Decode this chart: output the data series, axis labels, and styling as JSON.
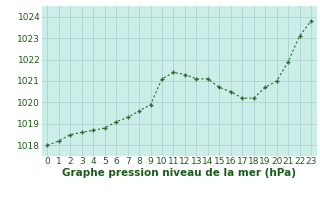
{
  "x": [
    0,
    1,
    2,
    3,
    4,
    5,
    6,
    7,
    8,
    9,
    10,
    11,
    12,
    13,
    14,
    15,
    16,
    17,
    18,
    19,
    20,
    21,
    22,
    23
  ],
  "y": [
    1018.0,
    1018.2,
    1018.5,
    1018.6,
    1018.7,
    1018.8,
    1019.1,
    1019.3,
    1019.6,
    1019.9,
    1021.1,
    1021.4,
    1021.3,
    1021.1,
    1021.1,
    1020.7,
    1020.5,
    1020.2,
    1020.2,
    1020.7,
    1021.0,
    1021.9,
    1023.1,
    1023.8
  ],
  "ylim": [
    1017.5,
    1024.5
  ],
  "yticks": [
    1018,
    1019,
    1020,
    1021,
    1022,
    1023,
    1024
  ],
  "xticks": [
    0,
    1,
    2,
    3,
    4,
    5,
    6,
    7,
    8,
    9,
    10,
    11,
    12,
    13,
    14,
    15,
    16,
    17,
    18,
    19,
    20,
    21,
    22,
    23
  ],
  "line_color": "#2d6a2d",
  "marker": "+",
  "bg_plot": "#cceee8",
  "bg_fig": "#ffffff",
  "grid_color": "#aacccc",
  "xlabel": "Graphe pression niveau de la mer (hPa)",
  "xlabel_color": "#1a5c1a",
  "tick_color": "#1a5c1a",
  "xlabel_fontsize": 7.5,
  "tick_fontsize": 6.5
}
